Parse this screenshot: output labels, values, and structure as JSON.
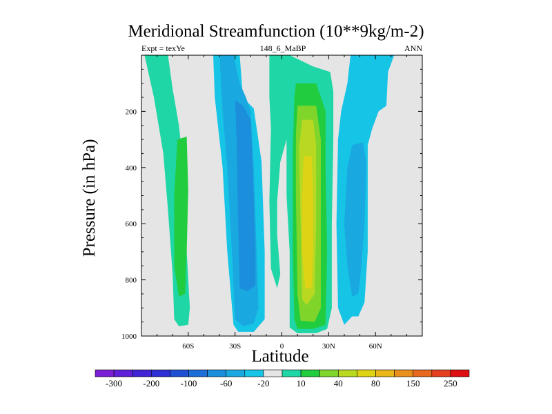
{
  "chart_data": {
    "type": "heatmap",
    "title": "Meridional Streamfunction (10**9kg/m-2)",
    "subtitle_left": "Expt = texYe",
    "subtitle_center": "148_6_MaBP",
    "subtitle_right": "ANN",
    "xlabel": "Latitude",
    "ylabel": "Pressure (in hPa)",
    "x_ticks": [
      {
        "value": -60,
        "label": "60S"
      },
      {
        "value": -30,
        "label": "30S"
      },
      {
        "value": 0,
        "label": "0"
      },
      {
        "value": 30,
        "label": "30N"
      },
      {
        "value": 60,
        "label": "60N"
      }
    ],
    "y_ticks": [
      {
        "value": 200,
        "label": "200"
      },
      {
        "value": 400,
        "label": "400"
      },
      {
        "value": 600,
        "label": "600"
      },
      {
        "value": 800,
        "label": "800"
      },
      {
        "value": 1000,
        "label": "1000"
      }
    ],
    "xlim": [
      -90,
      90
    ],
    "ylim": [
      1000,
      0
    ],
    "colorbar": {
      "colors": [
        "#7a1fd6",
        "#5f20d8",
        "#4224d6",
        "#2e2fd4",
        "#1f4fd2",
        "#1b6fd6",
        "#1b8edc",
        "#1aa8e0",
        "#16c4e6",
        "#e5e5e5",
        "#1fd6a6",
        "#22cc3f",
        "#7fd52a",
        "#b8d822",
        "#dfd316",
        "#e8b51a",
        "#e9901c",
        "#e8681e",
        "#e43f1e",
        "#dd0f12"
      ],
      "labels": [
        "-300",
        "-200",
        "-100",
        "-60",
        "-20",
        "10",
        "40",
        "80",
        "150",
        "250"
      ]
    },
    "bands": [
      {
        "level": "10 to 20",
        "points": [
          [
            -88,
            0
          ],
          [
            -73,
            0
          ],
          [
            -70,
            120
          ],
          [
            -66,
            250
          ],
          [
            -63,
            400
          ],
          [
            -61,
            700
          ],
          [
            -59,
            900
          ],
          [
            -60,
            960
          ],
          [
            -66,
            965
          ],
          [
            -69,
            940
          ],
          [
            -70,
            780
          ],
          [
            -73,
            550
          ],
          [
            -76,
            350
          ],
          [
            -82,
            150
          ],
          [
            -86,
            50
          ]
        ],
        "color": "#1fd6a6"
      },
      {
        "level": "20 to 30",
        "points": [
          [
            -61,
            290
          ],
          [
            -67,
            300
          ],
          [
            -69,
            500
          ],
          [
            -69,
            750
          ],
          [
            -66,
            860
          ],
          [
            -62,
            850
          ],
          [
            -61,
            700
          ],
          [
            -60,
            480
          ]
        ],
        "color": "#22cc3f"
      },
      {
        "level": "-20 to -10",
        "points": [
          [
            -44,
            0
          ],
          [
            -27,
            0
          ],
          [
            -25,
            150
          ],
          [
            -18,
            190
          ],
          [
            -13,
            380
          ],
          [
            -11,
            700
          ],
          [
            -11,
            940
          ],
          [
            -18,
            985
          ],
          [
            -28,
            985
          ],
          [
            -31,
            960
          ],
          [
            -35,
            700
          ],
          [
            -38,
            400
          ],
          [
            -43,
            150
          ]
        ],
        "color": "#16c4e6"
      },
      {
        "level": "-30 to -20",
        "points": [
          [
            -40,
            0
          ],
          [
            -31,
            0
          ],
          [
            -27,
            100
          ],
          [
            -23,
            150
          ],
          [
            -20,
            200
          ],
          [
            -18,
            400
          ],
          [
            -15,
            900
          ],
          [
            -18,
            955
          ],
          [
            -25,
            965
          ],
          [
            -30,
            940
          ],
          [
            -32,
            700
          ],
          [
            -35,
            400
          ],
          [
            -38,
            200
          ]
        ],
        "color": "#1aa8e0"
      },
      {
        "level": "-40 to -30",
        "points": [
          [
            -30,
            160
          ],
          [
            -25,
            180
          ],
          [
            -20,
            230
          ],
          [
            -18,
            500
          ],
          [
            -17,
            700
          ],
          [
            -17,
            820
          ],
          [
            -22,
            840
          ],
          [
            -27,
            830
          ],
          [
            -28,
            600
          ],
          [
            -29,
            300
          ]
        ],
        "color": "#1b8edc"
      },
      {
        "level": "10 to 20",
        "points": [
          [
            -8,
            0
          ],
          [
            5,
            0
          ],
          [
            20,
            40
          ],
          [
            31,
            60
          ],
          [
            33,
            130
          ],
          [
            33,
            300
          ],
          [
            32,
            600
          ],
          [
            32,
            900
          ],
          [
            29,
            975
          ],
          [
            22,
            990
          ],
          [
            10,
            990
          ],
          [
            5,
            970
          ],
          [
            5,
            700
          ],
          [
            3,
            500
          ],
          [
            3,
            300
          ],
          [
            -1,
            380
          ],
          [
            -3,
            520
          ],
          [
            -3,
            640
          ],
          [
            -1,
            780
          ],
          [
            -3,
            830
          ],
          [
            -7,
            760
          ],
          [
            -8,
            520
          ],
          [
            -7,
            260
          ],
          [
            -8,
            150
          ]
        ],
        "color": "#1fd6a6"
      },
      {
        "level": "20 to 30",
        "points": [
          [
            9,
            100
          ],
          [
            22,
            100
          ],
          [
            28,
            200
          ],
          [
            28,
            400
          ],
          [
            29,
            700
          ],
          [
            28,
            960
          ],
          [
            20,
            975
          ],
          [
            10,
            975
          ],
          [
            8,
            940
          ],
          [
            7,
            700
          ],
          [
            7,
            350
          ],
          [
            8,
            150
          ]
        ],
        "color": "#22cc3f"
      },
      {
        "level": "30 to 40",
        "points": [
          [
            10,
            180
          ],
          [
            22,
            180
          ],
          [
            25,
            300
          ],
          [
            25,
            600
          ],
          [
            25,
            900
          ],
          [
            21,
            950
          ],
          [
            12,
            945
          ],
          [
            10,
            850
          ],
          [
            9,
            500
          ],
          [
            9,
            280
          ]
        ],
        "color": "#7fd52a"
      },
      {
        "level": "40 to 60",
        "points": [
          [
            13,
            230
          ],
          [
            20,
            230
          ],
          [
            22,
            320
          ],
          [
            22,
            600
          ],
          [
            21,
            850
          ],
          [
            16,
            890
          ],
          [
            13,
            870
          ],
          [
            12,
            600
          ],
          [
            11,
            330
          ]
        ],
        "color": "#b8d822"
      },
      {
        "level": "60 to 80",
        "points": [
          [
            14,
            360
          ],
          [
            19,
            360
          ],
          [
            20,
            500
          ],
          [
            20,
            700
          ],
          [
            19,
            830
          ],
          [
            15,
            830
          ],
          [
            13,
            700
          ],
          [
            13,
            500
          ]
        ],
        "color": "#dfd316"
      },
      {
        "level": "-20 to -10",
        "points": [
          [
            44,
            0
          ],
          [
            72,
            0
          ],
          [
            68,
            60
          ],
          [
            67,
            180
          ],
          [
            62,
            200
          ],
          [
            58,
            260
          ],
          [
            55,
            320
          ],
          [
            55,
            700
          ],
          [
            53,
            880
          ],
          [
            49,
            930
          ],
          [
            45,
            930
          ],
          [
            40,
            960
          ],
          [
            36,
            900
          ],
          [
            35,
            600
          ],
          [
            36,
            300
          ],
          [
            38,
            200
          ],
          [
            42,
            100
          ]
        ],
        "color": "#16c4e6"
      },
      {
        "level": "-30 to -20",
        "points": [
          [
            45,
            320
          ],
          [
            52,
            310
          ],
          [
            54,
            380
          ],
          [
            53,
            600
          ],
          [
            51,
            750
          ],
          [
            49,
            850
          ],
          [
            45,
            860
          ],
          [
            42,
            750
          ],
          [
            40,
            600
          ],
          [
            42,
            400
          ]
        ],
        "color": "#1aa8e0"
      }
    ]
  }
}
